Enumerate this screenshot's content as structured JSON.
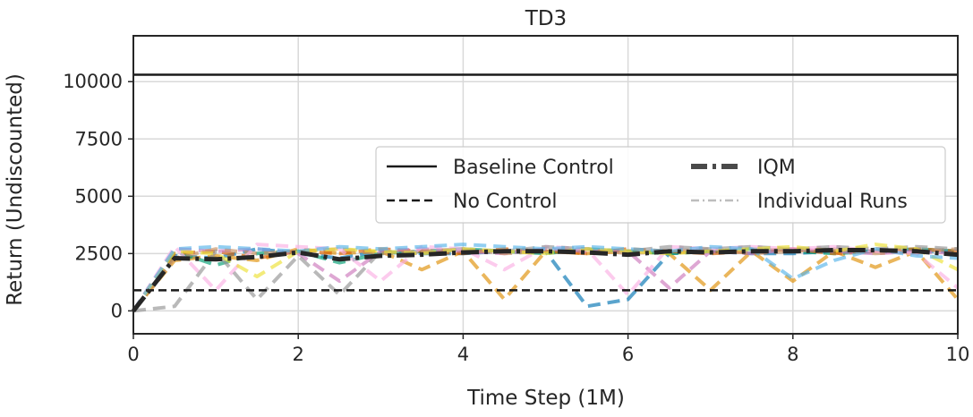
{
  "chart_data": {
    "type": "line",
    "title": "TD3",
    "xlabel": "Time Step (1M)",
    "ylabel": "Return (Undiscounted)",
    "xlim": [
      0,
      10
    ],
    "ylim": [
      -1000,
      12000
    ],
    "xticks": [
      0,
      2,
      4,
      6,
      8,
      10
    ],
    "yticks": [
      0,
      2500,
      5000,
      7500,
      10000
    ],
    "xtick_labels": [
      "0",
      "2",
      "4",
      "6",
      "8",
      "10"
    ],
    "ytick_labels": [
      "0",
      "2500",
      "5000",
      "7500",
      "10000"
    ],
    "grid": true,
    "legend_position": "center-right",
    "reference_lines": [
      {
        "name": "Baseline Control",
        "y": 10300,
        "style": "solid",
        "color": "#1a1a1a"
      },
      {
        "name": "No Control",
        "y": 900,
        "style": "dashed",
        "color": "#1a1a1a"
      }
    ],
    "iqm": {
      "name": "IQM",
      "color": "#262626",
      "x": [
        0,
        0.5,
        1,
        1.5,
        2,
        2.5,
        3,
        3.5,
        4,
        4.5,
        5,
        5.5,
        6,
        6.5,
        7,
        7.5,
        8,
        8.5,
        9,
        9.5,
        10
      ],
      "y": [
        0,
        2300,
        2250,
        2350,
        2550,
        2250,
        2400,
        2450,
        2550,
        2600,
        2600,
        2550,
        2450,
        2600,
        2550,
        2600,
        2600,
        2650,
        2650,
        2600,
        2450
      ]
    },
    "individual_runs_label": "Individual Runs",
    "individual_runs": [
      {
        "color": "#0173b2",
        "y": [
          0,
          2400,
          2300,
          2700,
          2500,
          2300,
          2600,
          2500,
          2500,
          2600,
          2600,
          200,
          500,
          2500,
          2600,
          2500,
          2500,
          2600,
          2600,
          2600,
          2600
        ]
      },
      {
        "color": "#de8f05",
        "y": [
          0,
          2200,
          2400,
          2200,
          2700,
          2500,
          2600,
          1800,
          2600,
          500,
          2600,
          2500,
          2600,
          2500,
          900,
          2600,
          1300,
          2600,
          1900,
          2600,
          500
        ]
      },
      {
        "color": "#029e73",
        "y": [
          0,
          2600,
          2000,
          2500,
          2600,
          2100,
          2500,
          2600,
          2700,
          2600,
          2500,
          2700,
          2600,
          2500,
          2600,
          2700,
          2600,
          2500,
          2600,
          2700,
          2600
        ]
      },
      {
        "color": "#d55e00",
        "y": [
          0,
          2500,
          2600,
          2300,
          2600,
          2500,
          2700,
          2600,
          2500,
          2700,
          2600,
          2500,
          2700,
          2600,
          2500,
          2600,
          2700,
          2500,
          2600,
          2700,
          2600
        ]
      },
      {
        "color": "#cc78bc",
        "y": [
          0,
          2700,
          2600,
          2700,
          2500,
          1300,
          2600,
          2700,
          2600,
          2500,
          2700,
          2600,
          2600,
          1000,
          2600,
          2500,
          2700,
          2600,
          2500,
          2600,
          2500
        ]
      },
      {
        "color": "#ca9161",
        "y": [
          0,
          2300,
          2700,
          2500,
          2600,
          2700,
          2500,
          2600,
          2700,
          2500,
          2600,
          2700,
          2500,
          2600,
          2700,
          2500,
          2600,
          2700,
          2500,
          2600,
          2700
        ]
      },
      {
        "color": "#fbafe4",
        "y": [
          0,
          2800,
          900,
          2900,
          2800,
          2700,
          1300,
          2800,
          2700,
          1800,
          2800,
          2700,
          700,
          2800,
          2700,
          2800,
          2700,
          2800,
          2600,
          2500,
          1000
        ]
      },
      {
        "color": "#949494",
        "y": [
          0,
          200,
          2600,
          500,
          2400,
          700,
          2600,
          2500,
          2700,
          2600,
          2800,
          2700,
          2600,
          2800,
          2700,
          2800,
          2700,
          2800,
          2700,
          2800,
          2700
        ]
      },
      {
        "color": "#ece133",
        "y": [
          0,
          2600,
          2500,
          1500,
          2600,
          2700,
          2600,
          2500,
          2700,
          2600,
          2500,
          2700,
          2600,
          2500,
          2600,
          2700,
          2800,
          2600,
          2900,
          2700,
          1800
        ]
      },
      {
        "color": "#56b4e9",
        "y": [
          0,
          2700,
          2800,
          2700,
          2600,
          2800,
          2700,
          2800,
          2900,
          2800,
          2700,
          2800,
          2700,
          2600,
          2800,
          2700,
          1400,
          2200,
          2700,
          2400,
          2300
        ]
      }
    ],
    "legend": [
      {
        "name": "Baseline Control",
        "style": "solid"
      },
      {
        "name": "IQM",
        "style": "dashdot"
      },
      {
        "name": "No Control",
        "style": "dashed"
      },
      {
        "name": "Individual Runs",
        "style": "light-dashdot"
      }
    ]
  }
}
